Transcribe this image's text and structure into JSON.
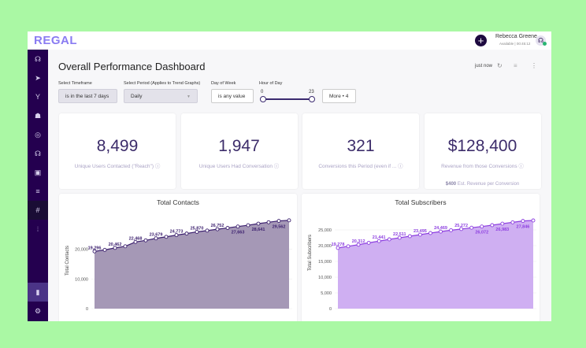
{
  "header": {
    "logo": "REGAL",
    "user_name": "Rebecca Greene",
    "user_status": "Available | 00:45:12"
  },
  "sidebar": {
    "items": [
      {
        "icon": "headset-icon",
        "glyph": "☊"
      },
      {
        "icon": "send-icon",
        "glyph": "➤"
      },
      {
        "icon": "branch-icon",
        "glyph": "Y"
      },
      {
        "icon": "users-icon",
        "glyph": "☗"
      },
      {
        "icon": "target-icon",
        "glyph": "◎"
      },
      {
        "icon": "support-icon",
        "glyph": "☊"
      },
      {
        "icon": "inbox-icon",
        "glyph": "▣"
      },
      {
        "icon": "list-icon",
        "glyph": "≡"
      },
      {
        "icon": "hashtag-icon",
        "glyph": "#"
      },
      {
        "icon": "audio-icon",
        "glyph": "⦙"
      },
      {
        "icon": "bar-chart-icon",
        "glyph": "▮"
      },
      {
        "icon": "settings-icon",
        "glyph": "⚙"
      }
    ]
  },
  "dashboard": {
    "title": "Overall Performance Dashboard",
    "refreshed": "just now"
  },
  "filters": {
    "timeframe": {
      "label": "Select Timeframe",
      "value": "is in the last 7 days"
    },
    "period": {
      "label": "Select Period (Applies to Trend Graphs)",
      "value": "Daily"
    },
    "day": {
      "label": "Day of Week",
      "value": "is any value"
    },
    "hour": {
      "label": "Hour of Day",
      "min": "0",
      "max": "23"
    },
    "more": "More • 4"
  },
  "kpis": [
    {
      "value": "8,499",
      "label": "Unique Users Contacted (\"Reach\")"
    },
    {
      "value": "1,947",
      "label": "Unique Users Had Conversation"
    },
    {
      "value": "321",
      "label": "Conversions this Period (even if ..."
    },
    {
      "value": "$128,400",
      "label": "Revenue from those Conversions",
      "extra_value": "$400",
      "extra_label": "Est. Revenue per Conversion"
    }
  ],
  "chart_data": [
    {
      "type": "area",
      "title": "Total Contacts",
      "ylabel": "Total Contacts",
      "ylim": [
        0,
        30000
      ],
      "yticks": [
        0,
        10000,
        20000
      ],
      "color": "#3b1f6e",
      "fill": "#a598b6",
      "values": [
        19296,
        19800,
        20462,
        21000,
        22468,
        23000,
        23679,
        24200,
        24773,
        25300,
        25870,
        26300,
        26752,
        27200,
        27663,
        28100,
        28641,
        29100,
        29562,
        29750
      ],
      "labels": {
        "0": "19,296",
        "2": "20,462",
        "4": "22,468",
        "6": "23,679",
        "8": "24,773",
        "10": "25,870",
        "12": "26,752",
        "14": "27,663",
        "16": "28,641",
        "18": "29,562"
      }
    },
    {
      "type": "area",
      "title": "Total Subscribers",
      "ylabel": "Total Subscribers",
      "ylim": [
        0,
        28000
      ],
      "yticks": [
        0,
        5000,
        10000,
        15000,
        20000,
        25000
      ],
      "color": "#8d3fe0",
      "fill": "#cfaff2",
      "values": [
        19278,
        19800,
        20312,
        20900,
        21441,
        22000,
        22511,
        23000,
        23495,
        24000,
        24469,
        24900,
        25272,
        25700,
        26072,
        26500,
        26983,
        27400,
        27846,
        28000
      ],
      "labels": {
        "0": "19,278",
        "2": "20,312",
        "4": "21,441",
        "6": "22,511",
        "8": "23,495",
        "10": "24,469",
        "12": "25,272",
        "14": "26,072",
        "16": "26,983",
        "18": "27,846"
      }
    }
  ]
}
